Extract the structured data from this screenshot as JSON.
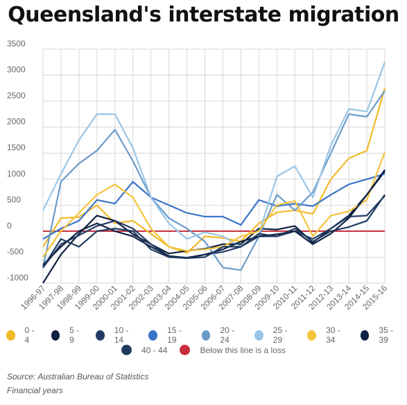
{
  "title": "Queensland's interstate migration",
  "source": "Source: Australian Bureau of Statistics",
  "note": "Financial years",
  "chart_data": {
    "type": "line",
    "categories": [
      "1996-97",
      "1997-98",
      "1998-99",
      "1999-00",
      "2000-01",
      "2001-02",
      "2002-03",
      "2003-04",
      "2004-05",
      "2005-06",
      "2006-07",
      "2007-08",
      "2008-09",
      "2009-10",
      "2010-11",
      "2011-12",
      "2012-13",
      "2013-14",
      "2014-15",
      "2015-16"
    ],
    "ylim": [
      -1000,
      3500
    ],
    "yticks": [
      -1000,
      -500,
      0,
      500,
      1000,
      1500,
      2000,
      2500,
      3000,
      3500
    ],
    "grid": true,
    "legend_position": "bottom",
    "series": [
      {
        "name": "0 - 4",
        "color": "#f2b928",
        "values": [
          -300,
          250,
          270,
          500,
          150,
          200,
          -50,
          -300,
          -420,
          -100,
          -130,
          -200,
          150,
          360,
          400,
          330,
          1000,
          1400,
          1550,
          2750
        ]
      },
      {
        "name": "5 - 9",
        "color": "#0f1f3d",
        "values": [
          -1000,
          -450,
          -50,
          300,
          200,
          -60,
          -250,
          -430,
          -380,
          -340,
          -250,
          -250,
          50,
          30,
          100,
          -220,
          50,
          300,
          700,
          1150
        ]
      },
      {
        "name": "10 - 14",
        "color": "#243a66",
        "values": [
          -700,
          -250,
          -80,
          100,
          200,
          50,
          -250,
          -480,
          -520,
          -450,
          -400,
          -300,
          -100,
          -100,
          0,
          -150,
          50,
          280,
          300,
          680
        ]
      },
      {
        "name": "15 - 19",
        "color": "#3a74c8",
        "values": [
          -150,
          50,
          200,
          600,
          530,
          950,
          650,
          500,
          350,
          280,
          280,
          120,
          600,
          480,
          530,
          480,
          700,
          900,
          1000,
          1100
        ]
      },
      {
        "name": "20 - 24",
        "color": "#6a9bc9",
        "values": [
          -700,
          950,
          1300,
          1550,
          1950,
          1350,
          650,
          250,
          50,
          -200,
          -700,
          -750,
          -100,
          700,
          400,
          750,
          1500,
          2250,
          2200,
          2700
        ]
      },
      {
        "name": "25 - 29",
        "color": "#99c6e6",
        "values": [
          400,
          1100,
          1750,
          2250,
          2250,
          1600,
          650,
          150,
          -150,
          -20,
          -100,
          -300,
          -50,
          1050,
          1250,
          650,
          1650,
          2350,
          2300,
          3250
        ]
      },
      {
        "name": "30 - 34",
        "color": "#f5c33c",
        "values": [
          -500,
          0,
          350,
          700,
          900,
          650,
          50,
          -300,
          -380,
          -350,
          -300,
          -100,
          0,
          500,
          580,
          -100,
          300,
          380,
          600,
          1520
        ]
      },
      {
        "name": "35 - 39",
        "color": "#0f2244",
        "values": [
          -650,
          -300,
          0,
          150,
          0,
          -100,
          -300,
          -480,
          -510,
          -450,
          -350,
          -200,
          -100,
          -60,
          0,
          -250,
          -50,
          250,
          700,
          1180
        ]
      },
      {
        "name": "40 - 44",
        "color": "#1e3a5f",
        "values": [
          -700,
          -150,
          -300,
          0,
          50,
          0,
          -350,
          -500,
          -520,
          -500,
          -300,
          -300,
          -50,
          -100,
          50,
          -200,
          0,
          80,
          200,
          700
        ]
      }
    ],
    "reference_line": {
      "label": "Below this line is a loss",
      "value": 0,
      "color": "#c72c3b"
    }
  }
}
